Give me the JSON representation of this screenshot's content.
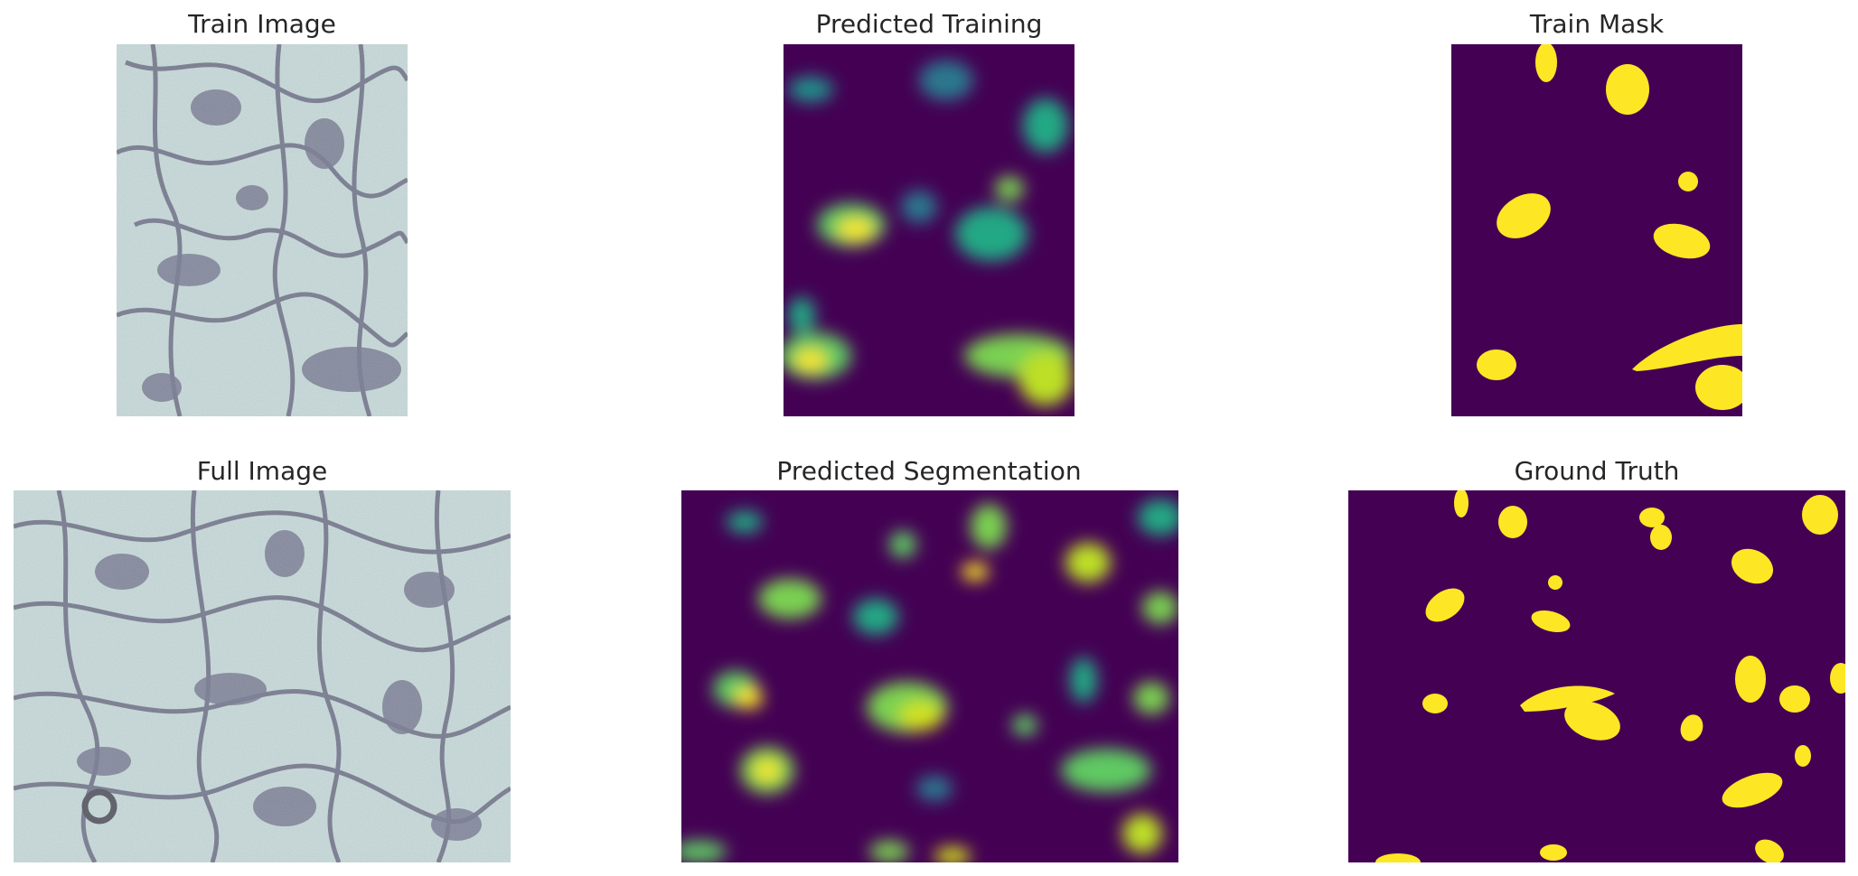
{
  "figure": {
    "panels": [
      {
        "id": "train-image",
        "title": "Train Image",
        "kind": "grayscale-em"
      },
      {
        "id": "predicted-training",
        "title": "Predicted Training",
        "kind": "viridis-prediction"
      },
      {
        "id": "train-mask",
        "title": "Train Mask",
        "kind": "binary-mask"
      },
      {
        "id": "full-image",
        "title": "Full Image",
        "kind": "grayscale-em"
      },
      {
        "id": "predicted-segmentation",
        "title": "Predicted Segmentation",
        "kind": "viridis-prediction"
      },
      {
        "id": "ground-truth",
        "title": "Ground Truth",
        "kind": "binary-mask"
      }
    ],
    "colors": {
      "mask_background": "#440154",
      "mask_foreground": "#fde725",
      "viridis_low": "#440154",
      "viridis_mid": "#21918c",
      "viridis_high": "#fde725",
      "em_light": "#b9d3d3",
      "em_dark": "#3a3d5c"
    }
  }
}
